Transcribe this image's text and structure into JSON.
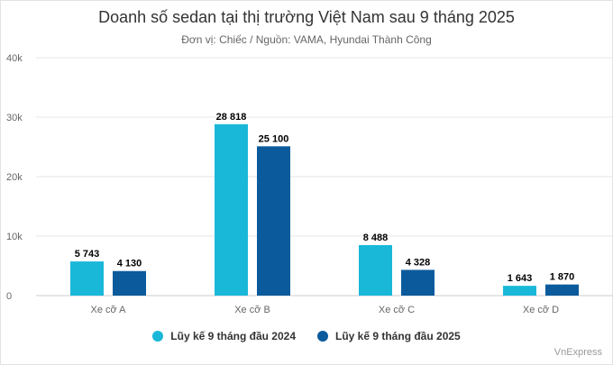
{
  "chart_data": {
    "type": "bar",
    "title": "Doanh số sedan tại thị trường Việt Nam sau 9 tháng 2025",
    "subtitle": "Đơn vị: Chiếc / Nguồn: VAMA, Hyundai Thành Công",
    "categories": [
      "Xe cỡ A",
      "Xe cỡ B",
      "Xe cỡ C",
      "Xe cỡ D"
    ],
    "series": [
      {
        "name": "Lũy kế 9 tháng đầu 2024",
        "color": "#1ab8d8",
        "values": [
          5743,
          28818,
          8488,
          1643
        ],
        "labels": [
          "5 743",
          "28 818",
          "8 488",
          "1 643"
        ]
      },
      {
        "name": "Lũy kế 9 tháng đầu 2025",
        "color": "#0b5b9c",
        "values": [
          4130,
          25100,
          4328,
          1870
        ],
        "labels": [
          "4 130",
          "25 100",
          "4 328",
          "1 870"
        ]
      }
    ],
    "ylim": [
      0,
      40000
    ],
    "yticks": [
      0,
      10000,
      20000,
      30000,
      40000
    ],
    "ytick_labels": [
      "0",
      "10k",
      "20k",
      "30k",
      "40k"
    ],
    "grid": true,
    "legend": "bottom-center"
  },
  "credit": "VnExpress"
}
